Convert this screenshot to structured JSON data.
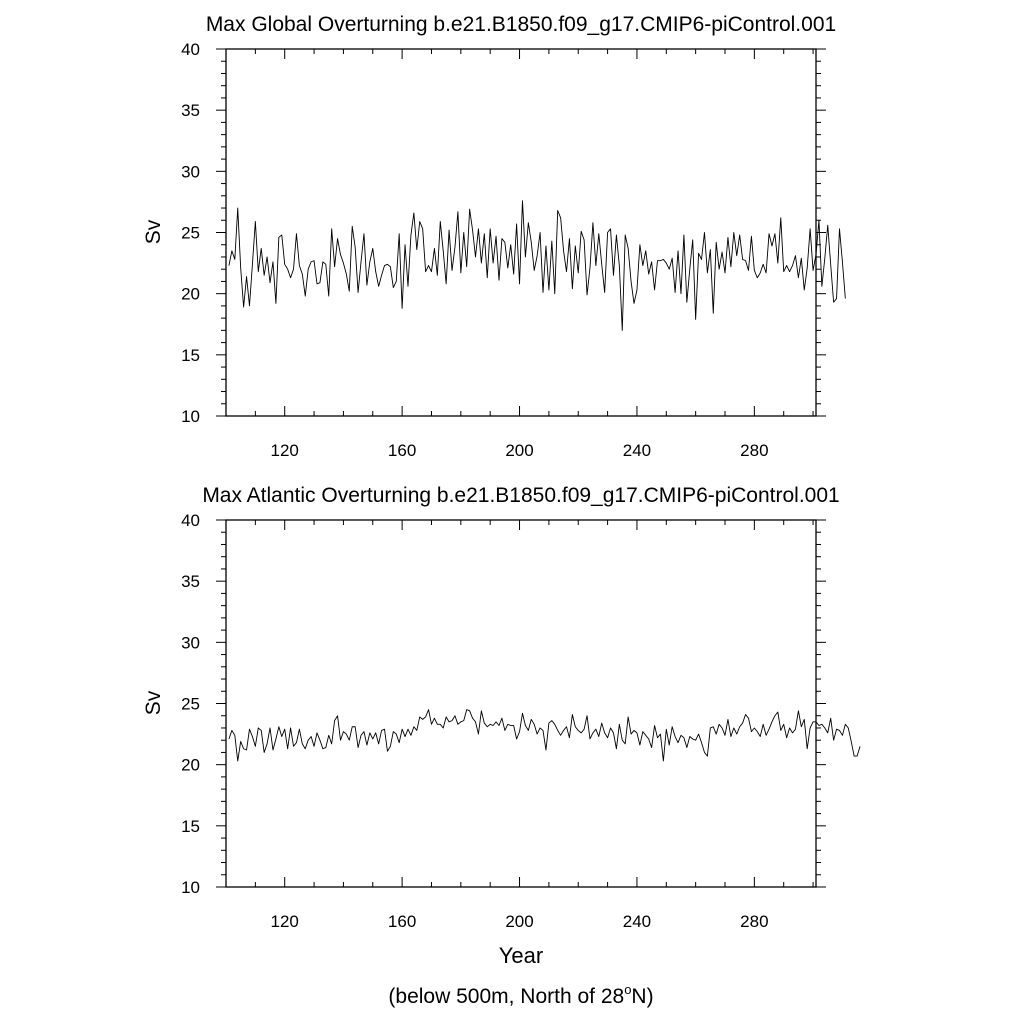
{
  "figure": {
    "xlabel": "Year",
    "note_prefix": "(below 500m, North of 28",
    "note_degree": "o",
    "note_suffix": "N)"
  },
  "chart_data": [
    {
      "type": "line",
      "title": "Max Global Overturning b.e21.B1850.f09_g17.CMIP6-piControl.001",
      "ylabel": "Sv",
      "xlabel": "",
      "xlim": [
        100,
        301
      ],
      "ylim": [
        10,
        40
      ],
      "xticks": [
        120,
        160,
        200,
        240,
        280
      ],
      "yticks": [
        10,
        15,
        20,
        25,
        30,
        35,
        40
      ],
      "grid": false,
      "series": [
        {
          "x_start": 101,
          "x_step": 1,
          "values": [
            22.3,
            23.5,
            22.8,
            27.0,
            22.1,
            18.9,
            21.4,
            19.0,
            22.4,
            25.9,
            21.8,
            23.7,
            21.5,
            23.0,
            20.9,
            22.6,
            19.2,
            24.6,
            24.8,
            22.4,
            22.0,
            21.3,
            22.0,
            24.9,
            22.3,
            21.6,
            19.8,
            22.0,
            22.6,
            22.7,
            20.8,
            20.9,
            22.6,
            22.4,
            19.8,
            25.3,
            22.2,
            24.5,
            23.2,
            22.5,
            21.6,
            20.2,
            25.5,
            23.8,
            20.1,
            22.6,
            24.9,
            20.7,
            22.6,
            23.7,
            21.8,
            20.6,
            21.5,
            22.3,
            22.4,
            22.2,
            20.5,
            21.0,
            24.9,
            18.8,
            24.0,
            20.6,
            24.8,
            26.6,
            23.6,
            25.9,
            25.3,
            21.8,
            22.3,
            21.8,
            23.7,
            21.5,
            25.9,
            23.5,
            20.8,
            25.2,
            21.9,
            23.8,
            26.7,
            21.7,
            25.0,
            22.2,
            26.9,
            25.2,
            23.0,
            25.3,
            22.5,
            24.9,
            21.3,
            25.3,
            22.5,
            24.7,
            21.1,
            24.5,
            24.2,
            22.1,
            24.0,
            21.6,
            25.7,
            20.8,
            27.6,
            23.0,
            25.8,
            24.2,
            21.9,
            23.1,
            25.0,
            20.1,
            23.9,
            20.3,
            24.3,
            20.0,
            26.8,
            26.2,
            23.5,
            21.8,
            24.5,
            20.4,
            23.9,
            21.7,
            25.1,
            24.4,
            19.9,
            22.1,
            25.8,
            22.3,
            24.9,
            22.4,
            20.1,
            25.0,
            25.3,
            21.5,
            24.8,
            22.3,
            17.0,
            24.8,
            23.7,
            21.0,
            19.2,
            20.3,
            24.0,
            22.3,
            23.5,
            21.6,
            22.6,
            20.3,
            22.7,
            22.7,
            22.8,
            22.5,
            22.0,
            22.9,
            20.1,
            23.5,
            20.0,
            24.8,
            19.3,
            22.0,
            24.4,
            17.9,
            23.3,
            22.8,
            25.0,
            21.7,
            23.6,
            18.4,
            24.2,
            22.0,
            23.4,
            21.7,
            24.6,
            22.2,
            25.0,
            23.1,
            24.8,
            22.8,
            22.7,
            21.9,
            24.7,
            21.9,
            21.3,
            21.7,
            22.4,
            21.7,
            24.9,
            23.9,
            24.9,
            22.5,
            26.2,
            21.8,
            22.3,
            21.8,
            22.3,
            23.1,
            21.3,
            22.9,
            20.3,
            22.1,
            25.3,
            21.9,
            23.2,
            26.0,
            20.6,
            22.9,
            25.6,
            22.4,
            19.3,
            19.6,
            25.3,
            22.6,
            19.6
          ]
        }
      ]
    },
    {
      "type": "line",
      "title": "Max Atlantic Overturning b.e21.B1850.f09_g17.CMIP6-piControl.001",
      "ylabel": "Sv",
      "xlabel": "Year",
      "xlim": [
        100,
        301
      ],
      "ylim": [
        10,
        40
      ],
      "xticks": [
        120,
        160,
        200,
        240,
        280
      ],
      "yticks": [
        10,
        15,
        20,
        25,
        30,
        35,
        40
      ],
      "grid": false,
      "series": [
        {
          "x_start": 101,
          "x_step": 1,
          "values": [
            22.1,
            22.8,
            22.4,
            20.3,
            21.9,
            21.3,
            21.2,
            22.9,
            22.3,
            21.5,
            23.0,
            22.8,
            21.0,
            21.7,
            23.0,
            21.2,
            22.1,
            23.1,
            22.3,
            22.9,
            21.3,
            23.0,
            21.5,
            21.8,
            22.9,
            21.7,
            21.3,
            22.0,
            22.3,
            21.5,
            22.6,
            22.0,
            21.3,
            21.4,
            22.4,
            21.7,
            23.6,
            24.0,
            22.0,
            22.7,
            22.5,
            22.0,
            23.1,
            23.1,
            21.4,
            22.4,
            22.7,
            21.6,
            22.6,
            22.1,
            22.6,
            21.7,
            22.8,
            22.9,
            21.1,
            21.5,
            22.7,
            22.5,
            21.8,
            22.9,
            22.3,
            22.9,
            22.4,
            23.1,
            22.8,
            23.9,
            23.7,
            23.9,
            24.5,
            23.3,
            23.8,
            23.3,
            23.3,
            23.0,
            23.9,
            23.5,
            23.6,
            24.0,
            23.3,
            23.5,
            23.6,
            24.5,
            24.4,
            23.8,
            23.5,
            22.5,
            24.4,
            23.4,
            23.1,
            23.3,
            23.2,
            23.5,
            23.2,
            23.8,
            22.8,
            23.3,
            23.2,
            23.2,
            22.1,
            22.7,
            24.2,
            23.2,
            22.8,
            23.7,
            23.3,
            22.5,
            23.0,
            22.8,
            21.2,
            23.4,
            23.6,
            23.3,
            22.8,
            22.4,
            22.8,
            23.1,
            22.2,
            24.1,
            23.1,
            22.8,
            22.6,
            22.9,
            24.0,
            22.1,
            22.6,
            22.9,
            22.3,
            23.4,
            22.6,
            22.2,
            23.0,
            22.6,
            21.3,
            23.3,
            22.0,
            21.7,
            23.9,
            22.5,
            22.8,
            22.6,
            21.6,
            22.7,
            22.4,
            22.1,
            21.4,
            23.2,
            22.2,
            22.5,
            20.3,
            22.9,
            21.6,
            23.1,
            22.3,
            21.8,
            22.4,
            22.2,
            21.4,
            22.3,
            22.1,
            22.0,
            22.5,
            21.8,
            21.0,
            20.7,
            23.0,
            23.1,
            22.5,
            23.3,
            23.0,
            22.4,
            23.7,
            22.3,
            23.0,
            22.5,
            23.1,
            23.4,
            24.1,
            23.8,
            22.7,
            23.0,
            22.7,
            22.3,
            23.3,
            22.4,
            22.9,
            23.5,
            24.0,
            24.3,
            22.8,
            23.3,
            22.2,
            23.0,
            22.6,
            22.9,
            24.4,
            23.1,
            23.7,
            21.3,
            23.0,
            23.5,
            23.5,
            23.2,
            23.3,
            23.0,
            22.6,
            23.8,
            22.0,
            22.9,
            22.8,
            22.4,
            23.3,
            23.0,
            21.9,
            20.7,
            20.7,
            21.5
          ]
        }
      ]
    }
  ]
}
